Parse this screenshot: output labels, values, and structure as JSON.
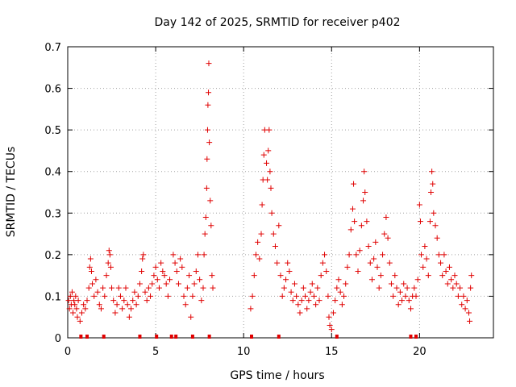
{
  "chart_data": {
    "type": "scatter",
    "title": "Day 142 of 2025, SRMTID for receiver p402",
    "xlabel": "GPS time / hours",
    "ylabel": "SRMTID / TECUs",
    "xlim": [
      0,
      24.2
    ],
    "ylim": [
      0,
      0.7
    ],
    "xticks": [
      "0",
      "5",
      "10",
      "15",
      "20"
    ],
    "yticks": [
      "0",
      "0.1",
      "0.2",
      "0.3",
      "0.4",
      "0.5",
      "0.6",
      "0.7"
    ],
    "xtick_values": [
      0,
      5,
      10,
      15,
      20
    ],
    "ytick_values": [
      0,
      0.1,
      0.2,
      0.3,
      0.4,
      0.5,
      0.6,
      0.7
    ],
    "grid": true,
    "series": [
      {
        "name": "SRMTID",
        "marker": "plus",
        "color": "#e00000",
        "points": [
          [
            0.05,
            0.09
          ],
          [
            0.1,
            0.07
          ],
          [
            0.15,
            0.1
          ],
          [
            0.2,
            0.08
          ],
          [
            0.25,
            0.11
          ],
          [
            0.3,
            0.06
          ],
          [
            0.35,
            0.09
          ],
          [
            0.4,
            0.08
          ],
          [
            0.45,
            0.1
          ],
          [
            0.5,
            0.07
          ],
          [
            0.55,
            0.05
          ],
          [
            0.6,
            0.09
          ],
          [
            0.7,
            0.04
          ],
          [
            0.8,
            0.06
          ],
          [
            0.9,
            0.08
          ],
          [
            1.0,
            0.07
          ],
          [
            1.1,
            0.09
          ],
          [
            1.2,
            0.12
          ],
          [
            1.25,
            0.17
          ],
          [
            1.3,
            0.19
          ],
          [
            1.35,
            0.16
          ],
          [
            1.4,
            0.13
          ],
          [
            1.5,
            0.1
          ],
          [
            1.6,
            0.14
          ],
          [
            1.7,
            0.11
          ],
          [
            1.8,
            0.08
          ],
          [
            1.9,
            0.07
          ],
          [
            2.0,
            0.12
          ],
          [
            2.1,
            0.1
          ],
          [
            2.2,
            0.15
          ],
          [
            2.3,
            0.18
          ],
          [
            2.35,
            0.21
          ],
          [
            2.4,
            0.2
          ],
          [
            2.45,
            0.17
          ],
          [
            2.5,
            0.12
          ],
          [
            2.6,
            0.09
          ],
          [
            2.7,
            0.06
          ],
          [
            2.8,
            0.08
          ],
          [
            2.9,
            0.12
          ],
          [
            3.0,
            0.1
          ],
          [
            3.1,
            0.07
          ],
          [
            3.2,
            0.09
          ],
          [
            3.3,
            0.12
          ],
          [
            3.4,
            0.08
          ],
          [
            3.5,
            0.05
          ],
          [
            3.6,
            0.07
          ],
          [
            3.7,
            0.09
          ],
          [
            3.8,
            0.11
          ],
          [
            3.9,
            0.08
          ],
          [
            4.0,
            0.1
          ],
          [
            4.1,
            0.13
          ],
          [
            4.2,
            0.16
          ],
          [
            4.25,
            0.19
          ],
          [
            4.3,
            0.2
          ],
          [
            4.4,
            0.11
          ],
          [
            4.5,
            0.09
          ],
          [
            4.6,
            0.12
          ],
          [
            4.7,
            0.1
          ],
          [
            4.8,
            0.13
          ],
          [
            4.9,
            0.15
          ],
          [
            5.0,
            0.17
          ],
          [
            5.1,
            0.14
          ],
          [
            5.2,
            0.12
          ],
          [
            5.3,
            0.18
          ],
          [
            5.4,
            0.16
          ],
          [
            5.5,
            0.15
          ],
          [
            5.6,
            0.13
          ],
          [
            5.7,
            0.1
          ],
          [
            5.8,
            0.14
          ],
          [
            6.0,
            0.2
          ],
          [
            6.1,
            0.18
          ],
          [
            6.2,
            0.16
          ],
          [
            6.3,
            0.13
          ],
          [
            6.4,
            0.19
          ],
          [
            6.5,
            0.17
          ],
          [
            6.6,
            0.1
          ],
          [
            6.7,
            0.08
          ],
          [
            6.8,
            0.12
          ],
          [
            6.9,
            0.15
          ],
          [
            7.0,
            0.05
          ],
          [
            7.1,
            0.1
          ],
          [
            7.2,
            0.13
          ],
          [
            7.3,
            0.16
          ],
          [
            7.4,
            0.2
          ],
          [
            7.5,
            0.14
          ],
          [
            7.6,
            0.09
          ],
          [
            7.7,
            0.12
          ],
          [
            7.75,
            0.2
          ],
          [
            7.8,
            0.25
          ],
          [
            7.85,
            0.29
          ],
          [
            7.9,
            0.36
          ],
          [
            7.92,
            0.43
          ],
          [
            7.95,
            0.5
          ],
          [
            7.97,
            0.56
          ],
          [
            8.0,
            0.59
          ],
          [
            8.02,
            0.66
          ],
          [
            8.05,
            0.47
          ],
          [
            8.1,
            0.33
          ],
          [
            8.15,
            0.27
          ],
          [
            8.2,
            0.15
          ],
          [
            8.25,
            0.12
          ],
          [
            10.4,
            0.07
          ],
          [
            10.5,
            0.1
          ],
          [
            10.6,
            0.15
          ],
          [
            10.7,
            0.2
          ],
          [
            10.8,
            0.23
          ],
          [
            10.9,
            0.19
          ],
          [
            11.0,
            0.25
          ],
          [
            11.05,
            0.32
          ],
          [
            11.1,
            0.38
          ],
          [
            11.15,
            0.44
          ],
          [
            11.2,
            0.5
          ],
          [
            11.3,
            0.42
          ],
          [
            11.35,
            0.38
          ],
          [
            11.4,
            0.45
          ],
          [
            11.45,
            0.5
          ],
          [
            11.5,
            0.4
          ],
          [
            11.55,
            0.36
          ],
          [
            11.6,
            0.3
          ],
          [
            11.7,
            0.25
          ],
          [
            11.8,
            0.22
          ],
          [
            11.9,
            0.18
          ],
          [
            12.0,
            0.27
          ],
          [
            12.1,
            0.15
          ],
          [
            12.2,
            0.1
          ],
          [
            12.3,
            0.12
          ],
          [
            12.4,
            0.14
          ],
          [
            12.5,
            0.18
          ],
          [
            12.6,
            0.16
          ],
          [
            12.7,
            0.11
          ],
          [
            12.8,
            0.09
          ],
          [
            12.9,
            0.13
          ],
          [
            13.0,
            0.1
          ],
          [
            13.1,
            0.08
          ],
          [
            13.2,
            0.06
          ],
          [
            13.3,
            0.09
          ],
          [
            13.4,
            0.12
          ],
          [
            13.5,
            0.1
          ],
          [
            13.6,
            0.07
          ],
          [
            13.7,
            0.09
          ],
          [
            13.8,
            0.11
          ],
          [
            13.9,
            0.13
          ],
          [
            14.0,
            0.1
          ],
          [
            14.1,
            0.08
          ],
          [
            14.2,
            0.12
          ],
          [
            14.3,
            0.09
          ],
          [
            14.4,
            0.15
          ],
          [
            14.5,
            0.18
          ],
          [
            14.6,
            0.2
          ],
          [
            14.7,
            0.16
          ],
          [
            14.8,
            0.1
          ],
          [
            14.85,
            0.05
          ],
          [
            14.9,
            0.03
          ],
          [
            15.0,
            0.02
          ],
          [
            15.1,
            0.06
          ],
          [
            15.2,
            0.09
          ],
          [
            15.3,
            0.12
          ],
          [
            15.4,
            0.14
          ],
          [
            15.5,
            0.11
          ],
          [
            15.6,
            0.08
          ],
          [
            15.7,
            0.1
          ],
          [
            15.8,
            0.13
          ],
          [
            15.9,
            0.17
          ],
          [
            16.0,
            0.2
          ],
          [
            16.1,
            0.26
          ],
          [
            16.2,
            0.31
          ],
          [
            16.25,
            0.37
          ],
          [
            16.3,
            0.28
          ],
          [
            16.4,
            0.2
          ],
          [
            16.5,
            0.16
          ],
          [
            16.6,
            0.21
          ],
          [
            16.7,
            0.27
          ],
          [
            16.8,
            0.33
          ],
          [
            16.85,
            0.4
          ],
          [
            16.9,
            0.35
          ],
          [
            17.0,
            0.28
          ],
          [
            17.1,
            0.22
          ],
          [
            17.2,
            0.18
          ],
          [
            17.3,
            0.14
          ],
          [
            17.4,
            0.19
          ],
          [
            17.5,
            0.23
          ],
          [
            17.6,
            0.17
          ],
          [
            17.7,
            0.12
          ],
          [
            17.8,
            0.15
          ],
          [
            17.9,
            0.2
          ],
          [
            18.0,
            0.25
          ],
          [
            18.1,
            0.29
          ],
          [
            18.2,
            0.24
          ],
          [
            18.3,
            0.18
          ],
          [
            18.4,
            0.13
          ],
          [
            18.5,
            0.1
          ],
          [
            18.6,
            0.15
          ],
          [
            18.7,
            0.12
          ],
          [
            18.8,
            0.08
          ],
          [
            18.9,
            0.11
          ],
          [
            19.0,
            0.09
          ],
          [
            19.1,
            0.13
          ],
          [
            19.2,
            0.1
          ],
          [
            19.3,
            0.12
          ],
          [
            19.4,
            0.09
          ],
          [
            19.5,
            0.07
          ],
          [
            19.6,
            0.1
          ],
          [
            19.7,
            0.12
          ],
          [
            19.8,
            0.1
          ],
          [
            19.9,
            0.14
          ],
          [
            20.0,
            0.32
          ],
          [
            20.05,
            0.28
          ],
          [
            20.1,
            0.2
          ],
          [
            20.2,
            0.17
          ],
          [
            20.3,
            0.22
          ],
          [
            20.4,
            0.19
          ],
          [
            20.5,
            0.15
          ],
          [
            20.6,
            0.28
          ],
          [
            20.65,
            0.35
          ],
          [
            20.7,
            0.4
          ],
          [
            20.75,
            0.37
          ],
          [
            20.8,
            0.3
          ],
          [
            20.9,
            0.27
          ],
          [
            21.0,
            0.24
          ],
          [
            21.1,
            0.2
          ],
          [
            21.2,
            0.18
          ],
          [
            21.3,
            0.15
          ],
          [
            21.4,
            0.2
          ],
          [
            21.5,
            0.16
          ],
          [
            21.6,
            0.13
          ],
          [
            21.7,
            0.17
          ],
          [
            21.8,
            0.14
          ],
          [
            21.9,
            0.12
          ],
          [
            22.0,
            0.15
          ],
          [
            22.1,
            0.13
          ],
          [
            22.2,
            0.1
          ],
          [
            22.3,
            0.12
          ],
          [
            22.4,
            0.08
          ],
          [
            22.5,
            0.1
          ],
          [
            22.6,
            0.07
          ],
          [
            22.7,
            0.09
          ],
          [
            22.8,
            0.06
          ],
          [
            22.85,
            0.04
          ],
          [
            22.9,
            0.12
          ],
          [
            22.95,
            0.15
          ]
        ]
      }
    ],
    "zero_markers_x": [
      0.75,
      1.1,
      2.05,
      4.1,
      5.05,
      5.9,
      6.15,
      7.1,
      8.05,
      10.45,
      12.0,
      15.3,
      19.5,
      19.8
    ]
  }
}
